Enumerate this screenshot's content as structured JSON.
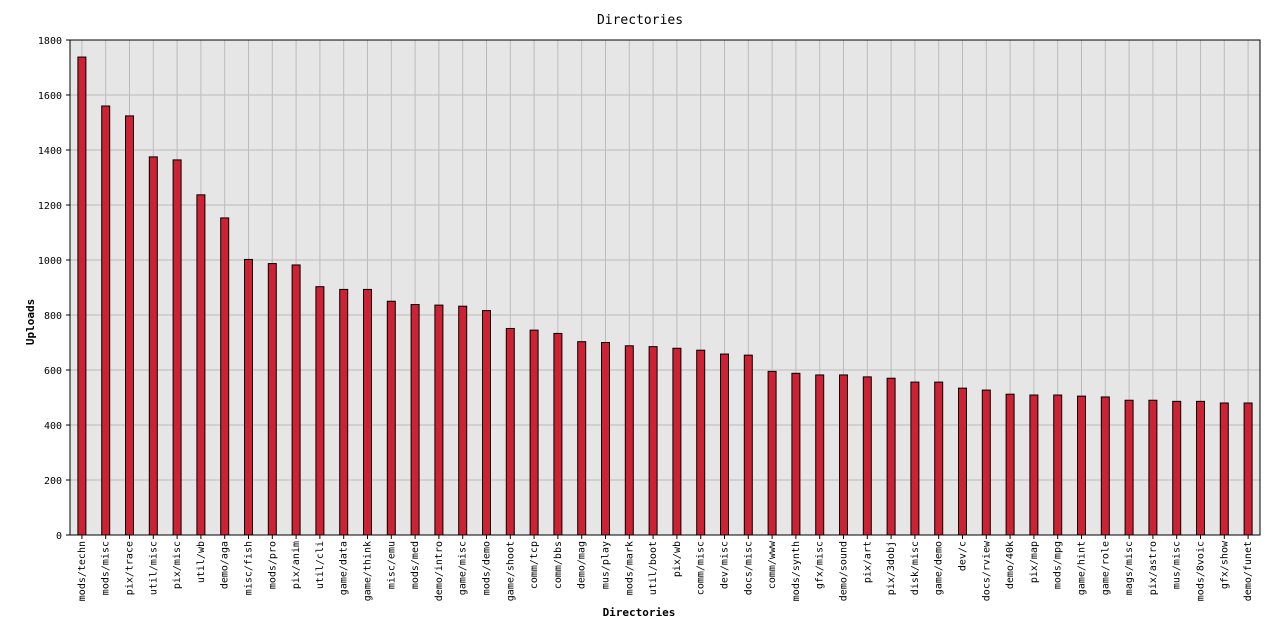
{
  "chart_data": {
    "type": "bar",
    "title": "Directories",
    "xlabel": "Directories",
    "ylabel": "Uploads",
    "ylim": [
      0,
      1800
    ],
    "yticks": [
      0,
      200,
      400,
      600,
      800,
      1000,
      1200,
      1400,
      1600,
      1800
    ],
    "grid": true,
    "colors": {
      "bar_fill": "#cc2233",
      "bar_stroke": "#000000",
      "plot_background": "#e6e6e6",
      "grid": "#bbbbbb"
    },
    "categories": [
      "mods/techn",
      "mods/misc",
      "pix/trace",
      "util/misc",
      "pix/misc",
      "util/wb",
      "demo/aga",
      "misc/fish",
      "mods/pro",
      "pix/anim",
      "util/cli",
      "game/data",
      "game/think",
      "misc/emu",
      "mods/med",
      "demo/intro",
      "game/misc",
      "mods/demo",
      "game/shoot",
      "comm/tcp",
      "comm/bbs",
      "demo/mag",
      "mus/play",
      "mods/mark",
      "util/boot",
      "pix/wb",
      "comm/misc",
      "dev/misc",
      "docs/misc",
      "comm/www",
      "mods/synth",
      "gfx/misc",
      "demo/sound",
      "pix/art",
      "pix/3dobj",
      "disk/misc",
      "game/demo",
      "dev/c",
      "docs/rview",
      "demo/40k",
      "pix/map",
      "mods/mpg",
      "game/hint",
      "game/role",
      "mags/misc",
      "pix/astro",
      "mus/misc",
      "mods/8voic",
      "gfx/show",
      "demo/funet"
    ],
    "values": [
      1738,
      1560,
      1524,
      1375,
      1364,
      1237,
      1153,
      1002,
      987,
      982,
      903,
      893,
      893,
      850,
      838,
      836,
      832,
      816,
      751,
      745,
      733,
      703,
      700,
      688,
      685,
      679,
      672,
      658,
      654,
      595,
      588,
      582,
      582,
      575,
      570,
      556,
      556,
      534,
      527,
      512,
      509,
      509,
      505,
      502,
      490,
      490,
      486,
      486,
      480,
      480
    ]
  }
}
